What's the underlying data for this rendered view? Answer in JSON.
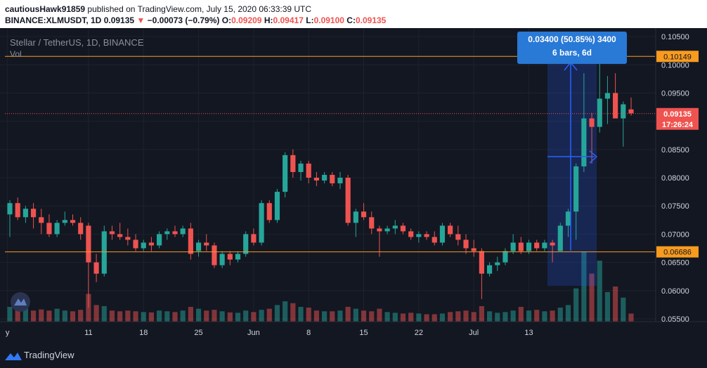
{
  "header": {
    "user": "cautiousHawk91859",
    "published": "published on TradingView.com, July 15, 2020 06:33:39 UTC",
    "symbol_line": "BINANCE:XLMUSDT, 1D",
    "last": "0.09135",
    "change_arrow": "▼",
    "change": "−0.00073 (−0.79%)",
    "o_label": "O:",
    "o_value": "0.09209",
    "h_label": "H:",
    "h_value": "0.09417",
    "l_label": "L:",
    "l_value": "0.09100",
    "c_label": "C:",
    "c_value": "0.09135"
  },
  "legend": {
    "title": "Stellar / TetherUS, 1D, BINANCE",
    "vol": "Vol"
  },
  "measure": {
    "line1": "0.03400 (50.85%) 3400",
    "line2": "6 bars, 6d"
  },
  "price_tags": {
    "upper": "0.10149",
    "last": "0.09135",
    "countdown": "17:26:24",
    "lower": "0.06686"
  },
  "footer": {
    "brand": "TradingView"
  },
  "colors": {
    "up": "#26a69a",
    "down": "#ef5350",
    "hline": "#f89b1f",
    "tag_last": "#ef5350",
    "measure": "#2962ff"
  },
  "chart_data": {
    "type": "candlestick",
    "yaxis": {
      "ylim": [
        0.0545,
        0.1065
      ],
      "ticks": [
        "0.10500",
        "0.10000",
        "0.09500",
        "0.09000",
        "0.08500",
        "0.08000",
        "0.07500",
        "0.07000",
        "0.06500",
        "0.06000",
        "0.05500"
      ]
    },
    "xaxis": {
      "ticks": [
        "y",
        "11",
        "18",
        "25",
        "Jun",
        "8",
        "15",
        "22",
        "Jul",
        "13"
      ]
    },
    "horizontal_lines": [
      0.10149,
      0.06686
    ],
    "volume_series": "Vol",
    "candles": [
      {
        "o": 0.0735,
        "h": 0.076,
        "l": 0.0695,
        "c": 0.0755,
        "v": 0.4
      },
      {
        "o": 0.0755,
        "h": 0.0765,
        "l": 0.0725,
        "c": 0.073,
        "v": 0.35
      },
      {
        "o": 0.073,
        "h": 0.075,
        "l": 0.072,
        "c": 0.0745,
        "v": 0.38
      },
      {
        "o": 0.0745,
        "h": 0.0755,
        "l": 0.071,
        "c": 0.073,
        "v": 0.3
      },
      {
        "o": 0.073,
        "h": 0.0745,
        "l": 0.07,
        "c": 0.072,
        "v": 0.33
      },
      {
        "o": 0.072,
        "h": 0.0735,
        "l": 0.0695,
        "c": 0.07,
        "v": 0.3
      },
      {
        "o": 0.07,
        "h": 0.0725,
        "l": 0.0695,
        "c": 0.072,
        "v": 0.35
      },
      {
        "o": 0.072,
        "h": 0.074,
        "l": 0.0715,
        "c": 0.0725,
        "v": 0.3
      },
      {
        "o": 0.0725,
        "h": 0.0735,
        "l": 0.0715,
        "c": 0.072,
        "v": 0.28
      },
      {
        "o": 0.072,
        "h": 0.073,
        "l": 0.069,
        "c": 0.07,
        "v": 0.32
      },
      {
        "o": 0.0715,
        "h": 0.072,
        "l": 0.057,
        "c": 0.065,
        "v": 0.75
      },
      {
        "o": 0.065,
        "h": 0.0665,
        "l": 0.0615,
        "c": 0.063,
        "v": 0.45
      },
      {
        "o": 0.063,
        "h": 0.0715,
        "l": 0.0625,
        "c": 0.0705,
        "v": 0.42
      },
      {
        "o": 0.0705,
        "h": 0.0715,
        "l": 0.069,
        "c": 0.07,
        "v": 0.3
      },
      {
        "o": 0.07,
        "h": 0.072,
        "l": 0.069,
        "c": 0.0695,
        "v": 0.28
      },
      {
        "o": 0.0695,
        "h": 0.071,
        "l": 0.068,
        "c": 0.069,
        "v": 0.3
      },
      {
        "o": 0.069,
        "h": 0.07,
        "l": 0.067,
        "c": 0.0675,
        "v": 0.28
      },
      {
        "o": 0.0675,
        "h": 0.069,
        "l": 0.067,
        "c": 0.0685,
        "v": 0.26
      },
      {
        "o": 0.0685,
        "h": 0.0695,
        "l": 0.067,
        "c": 0.068,
        "v": 0.25
      },
      {
        "o": 0.068,
        "h": 0.0705,
        "l": 0.0675,
        "c": 0.07,
        "v": 0.3
      },
      {
        "o": 0.07,
        "h": 0.071,
        "l": 0.069,
        "c": 0.0705,
        "v": 0.28
      },
      {
        "o": 0.0705,
        "h": 0.0715,
        "l": 0.0695,
        "c": 0.07,
        "v": 0.26
      },
      {
        "o": 0.07,
        "h": 0.0715,
        "l": 0.0695,
        "c": 0.071,
        "v": 0.3
      },
      {
        "o": 0.071,
        "h": 0.072,
        "l": 0.0655,
        "c": 0.0665,
        "v": 0.4
      },
      {
        "o": 0.067,
        "h": 0.069,
        "l": 0.066,
        "c": 0.0685,
        "v": 0.35
      },
      {
        "o": 0.0685,
        "h": 0.07,
        "l": 0.067,
        "c": 0.068,
        "v": 0.3
      },
      {
        "o": 0.068,
        "h": 0.0685,
        "l": 0.064,
        "c": 0.0645,
        "v": 0.32
      },
      {
        "o": 0.0645,
        "h": 0.067,
        "l": 0.064,
        "c": 0.0665,
        "v": 0.28
      },
      {
        "o": 0.0665,
        "h": 0.067,
        "l": 0.0645,
        "c": 0.0655,
        "v": 0.25
      },
      {
        "o": 0.0655,
        "h": 0.067,
        "l": 0.065,
        "c": 0.0665,
        "v": 0.24
      },
      {
        "o": 0.0665,
        "h": 0.0705,
        "l": 0.066,
        "c": 0.07,
        "v": 0.3
      },
      {
        "o": 0.07,
        "h": 0.071,
        "l": 0.068,
        "c": 0.0685,
        "v": 0.26
      },
      {
        "o": 0.0685,
        "h": 0.076,
        "l": 0.068,
        "c": 0.0755,
        "v": 0.32
      },
      {
        "o": 0.0755,
        "h": 0.076,
        "l": 0.072,
        "c": 0.0725,
        "v": 0.35
      },
      {
        "o": 0.0725,
        "h": 0.078,
        "l": 0.072,
        "c": 0.0775,
        "v": 0.45
      },
      {
        "o": 0.0775,
        "h": 0.0845,
        "l": 0.0765,
        "c": 0.084,
        "v": 0.55
      },
      {
        "o": 0.084,
        "h": 0.085,
        "l": 0.08,
        "c": 0.081,
        "v": 0.5
      },
      {
        "o": 0.081,
        "h": 0.083,
        "l": 0.0795,
        "c": 0.0825,
        "v": 0.4
      },
      {
        "o": 0.0825,
        "h": 0.083,
        "l": 0.079,
        "c": 0.08,
        "v": 0.38
      },
      {
        "o": 0.08,
        "h": 0.081,
        "l": 0.0785,
        "c": 0.0795,
        "v": 0.3
      },
      {
        "o": 0.0795,
        "h": 0.081,
        "l": 0.079,
        "c": 0.0805,
        "v": 0.28
      },
      {
        "o": 0.0805,
        "h": 0.081,
        "l": 0.0785,
        "c": 0.079,
        "v": 0.28
      },
      {
        "o": 0.079,
        "h": 0.081,
        "l": 0.078,
        "c": 0.08,
        "v": 0.3
      },
      {
        "o": 0.08,
        "h": 0.0805,
        "l": 0.0715,
        "c": 0.072,
        "v": 0.4
      },
      {
        "o": 0.072,
        "h": 0.0745,
        "l": 0.0695,
        "c": 0.074,
        "v": 0.35
      },
      {
        "o": 0.074,
        "h": 0.0755,
        "l": 0.0725,
        "c": 0.073,
        "v": 0.3
      },
      {
        "o": 0.073,
        "h": 0.074,
        "l": 0.07,
        "c": 0.071,
        "v": 0.28
      },
      {
        "o": 0.071,
        "h": 0.0715,
        "l": 0.066,
        "c": 0.0705,
        "v": 0.35
      },
      {
        "o": 0.0705,
        "h": 0.0715,
        "l": 0.07,
        "c": 0.071,
        "v": 0.26
      },
      {
        "o": 0.071,
        "h": 0.0725,
        "l": 0.07,
        "c": 0.0715,
        "v": 0.24
      },
      {
        "o": 0.0715,
        "h": 0.072,
        "l": 0.07,
        "c": 0.0705,
        "v": 0.22
      },
      {
        "o": 0.0705,
        "h": 0.071,
        "l": 0.069,
        "c": 0.0695,
        "v": 0.24
      },
      {
        "o": 0.0695,
        "h": 0.0705,
        "l": 0.0685,
        "c": 0.07,
        "v": 0.22
      },
      {
        "o": 0.07,
        "h": 0.0705,
        "l": 0.069,
        "c": 0.0695,
        "v": 0.2
      },
      {
        "o": 0.0695,
        "h": 0.0705,
        "l": 0.068,
        "c": 0.0685,
        "v": 0.2
      },
      {
        "o": 0.0685,
        "h": 0.072,
        "l": 0.068,
        "c": 0.0715,
        "v": 0.22
      },
      {
        "o": 0.0715,
        "h": 0.072,
        "l": 0.0695,
        "c": 0.07,
        "v": 0.26
      },
      {
        "o": 0.07,
        "h": 0.0715,
        "l": 0.068,
        "c": 0.069,
        "v": 0.28
      },
      {
        "o": 0.069,
        "h": 0.07,
        "l": 0.0665,
        "c": 0.0675,
        "v": 0.3
      },
      {
        "o": 0.0675,
        "h": 0.069,
        "l": 0.066,
        "c": 0.067,
        "v": 0.26
      },
      {
        "o": 0.067,
        "h": 0.0675,
        "l": 0.0585,
        "c": 0.063,
        "v": 0.42
      },
      {
        "o": 0.063,
        "h": 0.065,
        "l": 0.0625,
        "c": 0.0645,
        "v": 0.28
      },
      {
        "o": 0.0645,
        "h": 0.066,
        "l": 0.0635,
        "c": 0.065,
        "v": 0.24
      },
      {
        "o": 0.065,
        "h": 0.0675,
        "l": 0.0645,
        "c": 0.067,
        "v": 0.26
      },
      {
        "o": 0.067,
        "h": 0.07,
        "l": 0.0665,
        "c": 0.0685,
        "v": 0.3
      },
      {
        "o": 0.0685,
        "h": 0.0695,
        "l": 0.0665,
        "c": 0.067,
        "v": 0.4
      },
      {
        "o": 0.067,
        "h": 0.069,
        "l": 0.0665,
        "c": 0.0685,
        "v": 0.3
      },
      {
        "o": 0.0685,
        "h": 0.069,
        "l": 0.067,
        "c": 0.0675,
        "v": 0.32
      },
      {
        "o": 0.0675,
        "h": 0.069,
        "l": 0.067,
        "c": 0.0685,
        "v": 0.28
      },
      {
        "o": 0.0685,
        "h": 0.069,
        "l": 0.065,
        "c": 0.068,
        "v": 0.3
      },
      {
        "o": 0.067,
        "h": 0.072,
        "l": 0.067,
        "c": 0.0715,
        "v": 0.38
      },
      {
        "o": 0.0715,
        "h": 0.0745,
        "l": 0.0695,
        "c": 0.074,
        "v": 0.45
      },
      {
        "o": 0.074,
        "h": 0.0825,
        "l": 0.069,
        "c": 0.082,
        "v": 0.9
      },
      {
        "o": 0.082,
        "h": 0.0985,
        "l": 0.081,
        "c": 0.0905,
        "v": 1.9
      },
      {
        "o": 0.0905,
        "h": 0.0915,
        "l": 0.0825,
        "c": 0.089,
        "v": 1.3
      },
      {
        "o": 0.089,
        "h": 0.1015,
        "l": 0.088,
        "c": 0.094,
        "v": 1.65
      },
      {
        "o": 0.094,
        "h": 0.098,
        "l": 0.0895,
        "c": 0.095,
        "v": 0.8
      },
      {
        "o": 0.095,
        "h": 0.0985,
        "l": 0.0905,
        "c": 0.0905,
        "v": 0.95
      },
      {
        "o": 0.0905,
        "h": 0.0935,
        "l": 0.0855,
        "c": 0.093,
        "v": 0.65
      },
      {
        "o": 0.0921,
        "h": 0.0942,
        "l": 0.091,
        "c": 0.0914,
        "v": 0.22
      }
    ]
  }
}
